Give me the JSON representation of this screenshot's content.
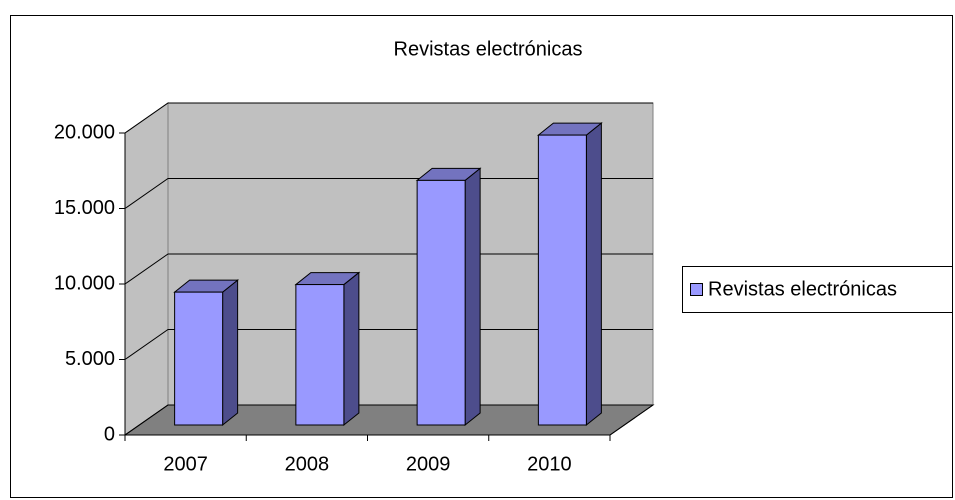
{
  "chart_data": {
    "type": "bar3d",
    "title": "Revistas electrónicas",
    "categories": [
      "2007",
      "2008",
      "2009",
      "2010"
    ],
    "series": [
      {
        "name": "Revistas electrónicas",
        "color": "#9999ff",
        "values": [
          8800,
          9300,
          16200,
          19200
        ]
      }
    ],
    "ylim": [
      0,
      20000
    ],
    "yticks": [
      0,
      {
        "value": 5000,
        "label": "5.000"
      },
      {
        "value": 10000,
        "label": "10.000"
      },
      {
        "value": 15000,
        "label": "15.000"
      },
      {
        "value": 20000,
        "label": "20.000"
      }
    ],
    "grid": true,
    "legend": "right"
  }
}
